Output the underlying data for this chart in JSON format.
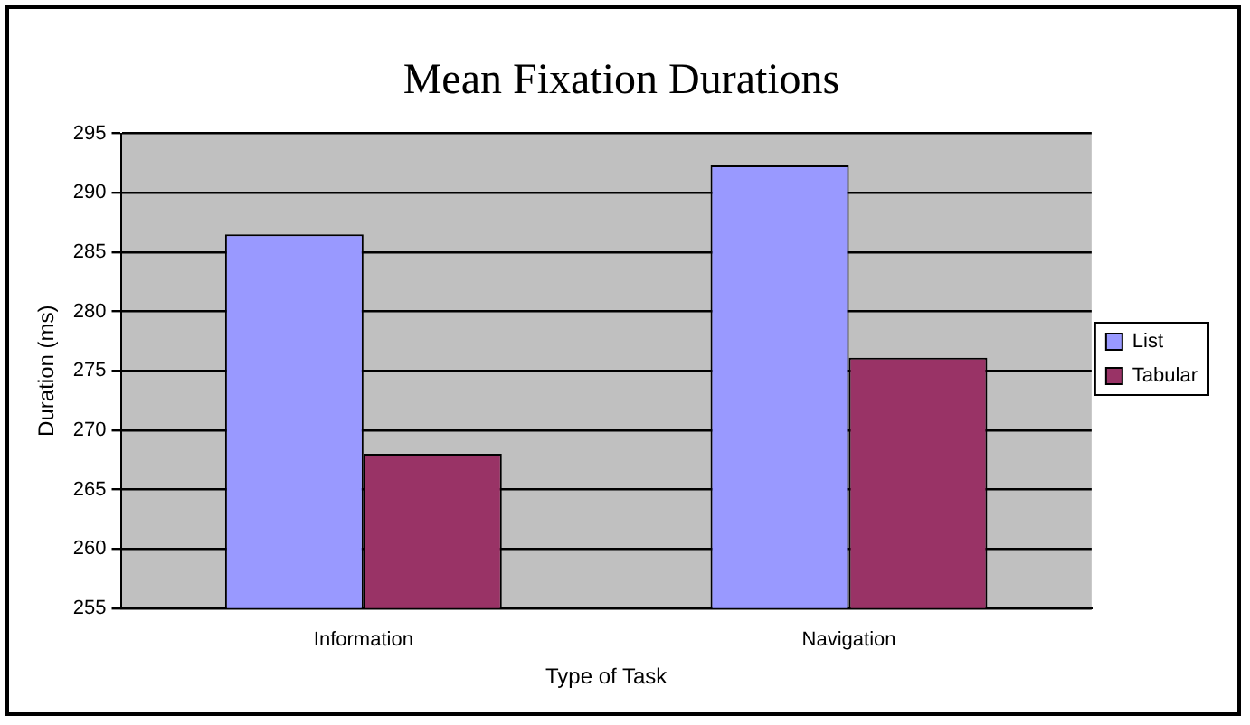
{
  "chart_data": {
    "type": "bar",
    "title": "Mean Fixation Durations",
    "xlabel": "Type of Task",
    "ylabel": "Duration (ms)",
    "categories": [
      "Information",
      "Navigation"
    ],
    "series": [
      {
        "name": "List",
        "color": "#9999ff",
        "values": [
          286.5,
          292.3
        ]
      },
      {
        "name": "Tabular",
        "color": "#993366",
        "values": [
          268,
          276.1
        ]
      }
    ],
    "ylim": [
      255,
      295
    ],
    "yticks": [
      255,
      260,
      265,
      270,
      275,
      280,
      285,
      290,
      295
    ],
    "grid": "y",
    "legend": "right"
  }
}
